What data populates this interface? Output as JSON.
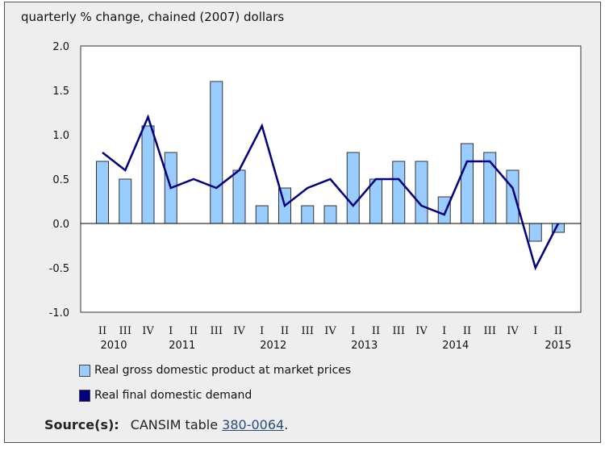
{
  "chart_data": {
    "type": "bar+line",
    "title": "quarterly % change, chained (2007) dollars",
    "categories": [
      "II",
      "III",
      "IV",
      "I",
      "II",
      "III",
      "IV",
      "I",
      "II",
      "III",
      "IV",
      "I",
      "II",
      "III",
      "IV",
      "I",
      "II",
      "III",
      "IV",
      "I",
      "II"
    ],
    "years": [
      {
        "label": "2010",
        "start": 0,
        "count": 3
      },
      {
        "label": "2011",
        "start": 3,
        "count": 4
      },
      {
        "label": "2012",
        "start": 7,
        "count": 4
      },
      {
        "label": "2013",
        "start": 11,
        "count": 4
      },
      {
        "label": "2014",
        "start": 15,
        "count": 4
      },
      {
        "label": "2015",
        "start": 19,
        "count": 2
      }
    ],
    "series": [
      {
        "name": "Real gross domestic product at market prices",
        "type": "bar",
        "color": "#99ccff",
        "values": [
          0.7,
          0.5,
          1.1,
          0.8,
          0.0,
          1.6,
          0.6,
          0.2,
          0.4,
          0.2,
          0.2,
          0.8,
          0.5,
          0.7,
          0.7,
          0.3,
          0.9,
          0.8,
          0.6,
          -0.2,
          -0.1
        ]
      },
      {
        "name": "Real final domestic demand",
        "type": "line",
        "color": "#000080",
        "values": [
          0.8,
          0.6,
          1.2,
          0.4,
          0.5,
          0.4,
          0.6,
          1.1,
          0.2,
          0.4,
          0.5,
          0.2,
          0.5,
          0.5,
          0.2,
          0.1,
          0.7,
          0.7,
          0.4,
          -0.5,
          0.0
        ]
      }
    ],
    "ylim": [
      -1.0,
      2.0
    ],
    "yticks": [
      "2.0",
      "1.5",
      "1.0",
      "0.5",
      "0.0",
      "-0.5",
      "-1.0"
    ],
    "ytick_values": [
      2.0,
      1.5,
      1.0,
      0.5,
      0.0,
      -0.5,
      -1.0
    ],
    "legend_placement": "bottom-left",
    "grid": false
  },
  "source": {
    "label": "Source(s):",
    "text": "CANSIM table ",
    "link": "380-0064",
    "end": "."
  }
}
